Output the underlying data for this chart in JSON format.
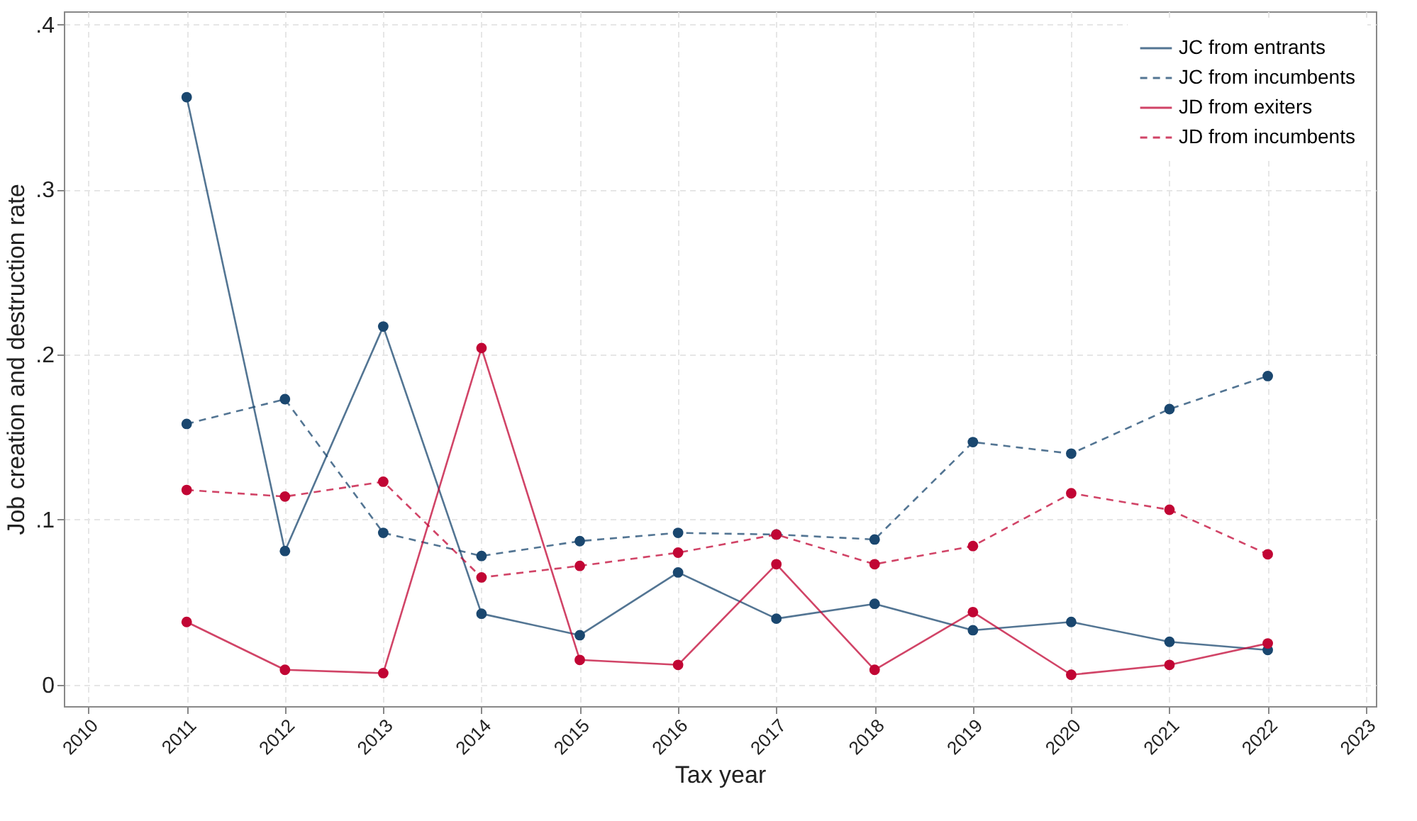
{
  "chart_data": {
    "type": "line",
    "xlabel": "Tax year",
    "ylabel": "Job creation and destruction rate",
    "x": [
      2011,
      2012,
      2013,
      2014,
      2015,
      2016,
      2017,
      2018,
      2019,
      2020,
      2021,
      2022
    ],
    "xlim": [
      2009.75,
      2023.1
    ],
    "xticks": [
      2010,
      2011,
      2012,
      2013,
      2014,
      2015,
      2016,
      2017,
      2018,
      2019,
      2020,
      2021,
      2022,
      2023
    ],
    "ylim": [
      -0.013,
      0.408
    ],
    "yticks": [
      0,
      {
        "value": 0.1,
        "label": ".1"
      },
      {
        "value": 0.2,
        "label": ".2"
      },
      {
        "value": 0.3,
        "label": ".3"
      },
      {
        "value": 0.4,
        "label": ".4"
      }
    ],
    "grid": true,
    "legend": "top right",
    "marker": "circle",
    "series": [
      {
        "name": "JC from entrants",
        "color": "#1a476f",
        "line_style": "solid",
        "values": [
          0.356,
          0.081,
          0.217,
          0.043,
          0.03,
          0.068,
          0.04,
          0.049,
          0.033,
          0.038,
          0.026,
          0.021
        ]
      },
      {
        "name": "JC from incumbents",
        "color": "#1a476f",
        "line_style": "dashed",
        "values": [
          0.158,
          0.173,
          0.092,
          0.078,
          0.087,
          0.092,
          0.091,
          0.088,
          0.147,
          0.14,
          0.167,
          0.187
        ]
      },
      {
        "name": "JD from exiters",
        "color": "#c10534",
        "line_style": "solid",
        "values": [
          0.038,
          0.009,
          0.007,
          0.204,
          0.015,
          0.012,
          0.073,
          0.009,
          0.044,
          0.006,
          0.012,
          0.025
        ]
      },
      {
        "name": "JD from incumbents",
        "color": "#c10534",
        "line_style": "dashed",
        "values": [
          0.118,
          0.114,
          0.123,
          0.065,
          0.072,
          0.08,
          0.091,
          0.073,
          0.084,
          0.116,
          0.106,
          0.079
        ]
      }
    ]
  }
}
